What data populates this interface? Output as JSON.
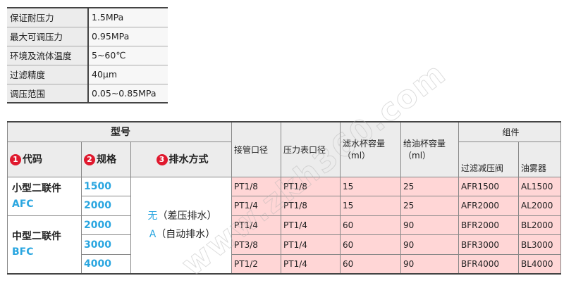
{
  "specs": [
    {
      "label": "保证耐压力",
      "value": "1.5MPa"
    },
    {
      "label": "最大可调压力",
      "value": "0.95MPa"
    },
    {
      "label": "环境及流体温度",
      "value": "5~60℃"
    },
    {
      "label": "过滤精度",
      "value": "40μm"
    },
    {
      "label": "调压范围",
      "value": "0.05~0.85MPa"
    }
  ],
  "model_table": {
    "header_model": "型号",
    "col_code": {
      "num": "1",
      "label": "代码"
    },
    "col_size": {
      "num": "2",
      "label": "规格"
    },
    "col_drain": {
      "num": "3",
      "label": "排水方式"
    },
    "col_port": "接管口径",
    "col_gauge": "压力表口径",
    "col_filter_cup": "滤水杯容量（ml）",
    "col_oil_cup": "给油杯容量（ml）",
    "col_components": "组件",
    "col_frv": "过滤减压阀",
    "col_lub": "油雾器",
    "groups": [
      {
        "name": "小型二联件",
        "code": "AFC"
      },
      {
        "name": "中型二联件",
        "code": "BFC"
      }
    ],
    "drain_options": [
      {
        "key": "无",
        "desc": "（差压排水）"
      },
      {
        "key": "A",
        "desc": "（自动排水）"
      }
    ],
    "rows": [
      {
        "size": "1500",
        "port": "PT1/8",
        "gauge": "PT1/8",
        "filter": "15",
        "oil": "25",
        "frv": "AFR1500",
        "lub": "AL1500"
      },
      {
        "size": "2000",
        "port": "PT1/4",
        "gauge": "PT1/8",
        "filter": "15",
        "oil": "25",
        "frv": "AFR2000",
        "lub": "AL2000"
      },
      {
        "size": "2000",
        "port": "PT1/4",
        "gauge": "PT1/4",
        "filter": "60",
        "oil": "90",
        "frv": "BFR2000",
        "lub": "BL2000"
      },
      {
        "size": "3000",
        "port": "PT3/8",
        "gauge": "PT1/4",
        "filter": "60",
        "oil": "90",
        "frv": "BFR3000",
        "lub": "BL3000"
      },
      {
        "size": "4000",
        "port": "PT1/2",
        "gauge": "PT1/4",
        "filter": "60",
        "oil": "90",
        "frv": "BFR4000",
        "lub": "BL4000"
      }
    ]
  },
  "watermark": "www.zkh360.com",
  "colors": {
    "accent_blue": "#2aa6e0",
    "number_badge": "#e0192e",
    "data_bg": "#ffd6d6",
    "header_bg": "#ececec"
  }
}
